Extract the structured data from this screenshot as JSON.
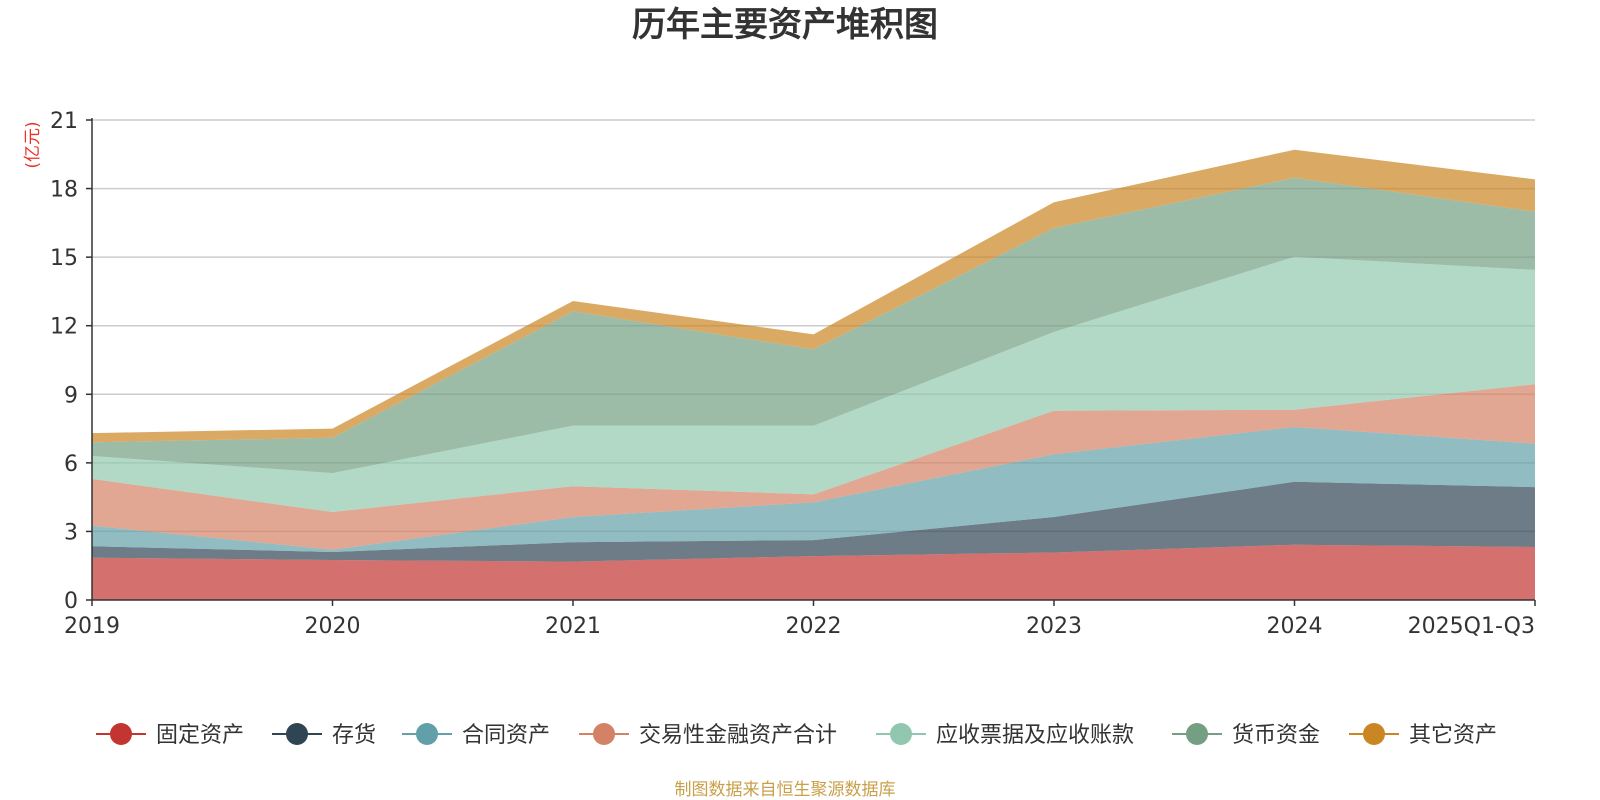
{
  "chart_data": {
    "type": "area",
    "stacked": true,
    "title": "历年主要资产堆积图",
    "ylabel": "(亿元)",
    "xlabel": "",
    "categories": [
      "2019",
      "2020",
      "2021",
      "2022",
      "2023",
      "2024",
      "2025Q1-Q3"
    ],
    "ylim": [
      0,
      21
    ],
    "yticks": [
      0,
      3,
      6,
      9,
      12,
      15,
      18,
      21
    ],
    "grid": true,
    "legend_position": "bottom",
    "series": [
      {
        "name": "固定资产",
        "color": "#c23531",
        "values": [
          1.85,
          1.75,
          1.68,
          1.92,
          2.08,
          2.42,
          2.32
        ]
      },
      {
        "name": "存货",
        "color": "#2f4554",
        "values": [
          0.5,
          0.35,
          0.85,
          0.7,
          1.55,
          2.75,
          2.62
        ]
      },
      {
        "name": "合同资产",
        "color": "#61a0a8",
        "values": [
          0.9,
          0.1,
          1.1,
          1.65,
          2.75,
          2.4,
          1.9
        ]
      },
      {
        "name": "交易性金融资产合计",
        "color": "#d48265",
        "values": [
          2.05,
          1.65,
          1.35,
          0.35,
          1.9,
          0.75,
          2.6
        ]
      },
      {
        "name": "应收票据及应收账款",
        "color": "#91c7ae",
        "values": [
          1.0,
          1.7,
          2.65,
          3.0,
          3.45,
          6.7,
          5.0
        ]
      },
      {
        "name": "货币资金",
        "color": "#749f83",
        "values": [
          0.6,
          1.55,
          5.0,
          3.35,
          4.55,
          3.45,
          2.55
        ]
      },
      {
        "name": "其它资产",
        "color": "#ca8622",
        "values": [
          0.4,
          0.4,
          0.45,
          0.65,
          1.12,
          1.23,
          1.41
        ]
      }
    ]
  },
  "source": "制图数据来自恒生聚源数据库"
}
